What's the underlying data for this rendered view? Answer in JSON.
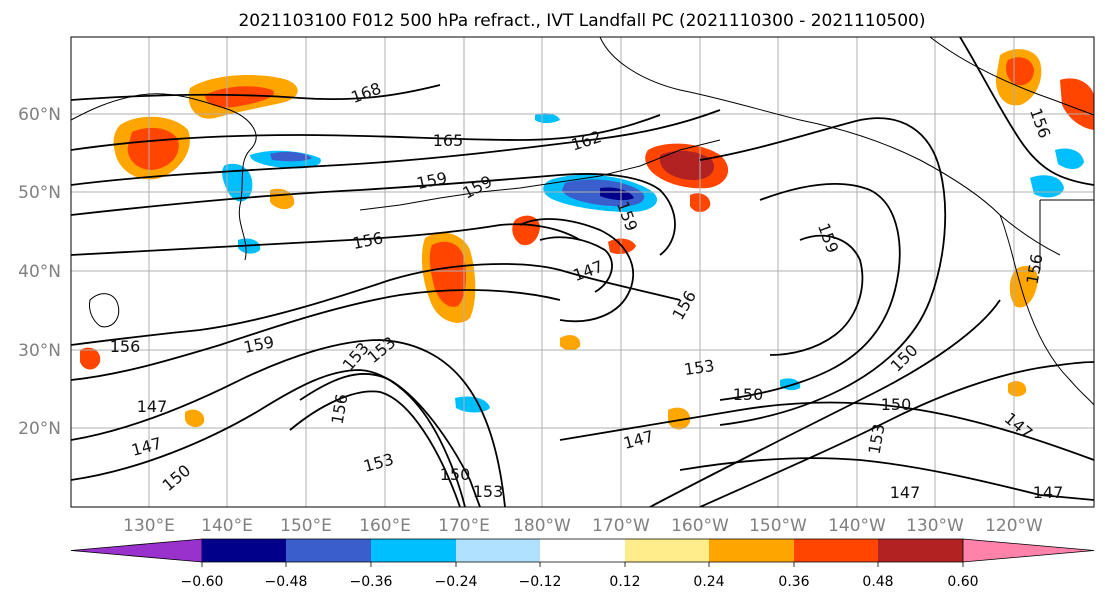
{
  "title": "2021103100 F012 500 hPa refract., IVT Landfall PC (2021110300 - 2021110500)",
  "map": {
    "lat_labels": [
      "60°N",
      "50°N",
      "40°N",
      "30°N",
      "20°N"
    ],
    "lon_labels": [
      "130°E",
      "140°E",
      "150°E",
      "160°E",
      "170°E",
      "180°W",
      "170°W",
      "160°W",
      "150°W",
      "140°W",
      "130°W",
      "120°W"
    ],
    "contour_labels": [
      "168",
      "165",
      "162",
      "159",
      "159",
      "156",
      "147",
      "159",
      "153",
      "156",
      "159",
      "147",
      "147",
      "150",
      "156",
      "153",
      "150",
      "147",
      "150",
      "153",
      "147",
      "156",
      "150",
      "147",
      "153",
      "156",
      "159",
      "156",
      "153",
      "150",
      "147",
      "153"
    ],
    "contour_color": "#000000",
    "land_outline_color": "#000000",
    "grid_color": "#b0b0b0"
  },
  "colorbar": {
    "ticks": [
      "−0.60",
      "−0.48",
      "−0.36",
      "−0.24",
      "−0.12",
      "0.12",
      "0.24",
      "0.36",
      "0.48",
      "0.60"
    ],
    "colors": [
      "#9932cc",
      "#00008b",
      "#3a5fcd",
      "#00bfff",
      "#b0e2ff",
      "#ffffff",
      "#ffec8b",
      "#ffa500",
      "#ff4500",
      "#b22222",
      "#ff82ab"
    ]
  }
}
